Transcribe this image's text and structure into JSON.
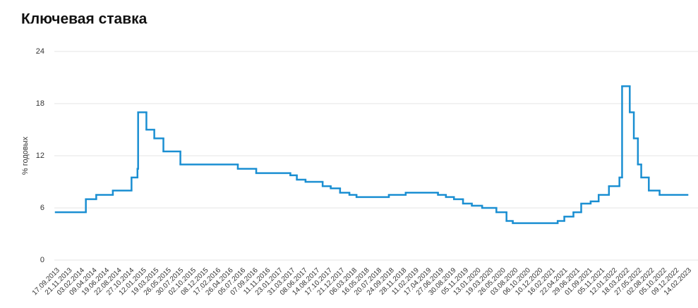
{
  "chart_data": {
    "type": "line",
    "step": true,
    "title": "Ключевая ставка",
    "y_label": "% годовых",
    "ylim": [
      0,
      24
    ],
    "yticks": [
      0,
      6,
      12,
      18,
      24
    ],
    "grid": true,
    "xticks": [
      "17.09.2013",
      "21.11.2013",
      "03.02.2014",
      "09.04.2014",
      "19.06.2014",
      "22.08.2014",
      "27.10.2014",
      "12.01.2015",
      "19.03.2015",
      "26.05.2015",
      "30.07.2015",
      "02.10.2015",
      "08.12.2015",
      "17.02.2016",
      "26.04.2016",
      "05.07.2016",
      "07.09.2016",
      "11.11.2016",
      "23.01.2017",
      "31.03.2017",
      "08.06.2017",
      "14.08.2017",
      "17.10.2017",
      "21.12.2017",
      "06.03.2018",
      "16.05.2018",
      "20.07.2018",
      "24.09.2018",
      "28.11.2018",
      "11.02.2019",
      "17.04.2019",
      "27.06.2019",
      "30.08.2019",
      "05.11.2019",
      "13.01.2020",
      "19.03.2020",
      "26.05.2020",
      "03.08.2020",
      "06.10.2020",
      "10.12.2020",
      "16.02.2021",
      "22.04.2021",
      "29.06.2021",
      "01.09.2021",
      "05.11.2021",
      "12.01.2022",
      "18.03.2022",
      "27.05.2022",
      "02.08.2022",
      "05.10.2022",
      "09.12.2022",
      "14.02.2023"
    ],
    "series": [
      {
        "color": "#1b8fd2",
        "x": [
          "17.09.2013",
          "03.03.2014",
          "28.04.2014",
          "28.07.2014",
          "05.11.2014",
          "12.12.2014",
          "16.12.2014",
          "02.02.2015",
          "16.03.2015",
          "05.05.2015",
          "03.08.2015",
          "14.06.2016",
          "19.09.2016",
          "27.03.2017",
          "02.05.2017",
          "19.06.2017",
          "18.09.2017",
          "30.10.2017",
          "18.12.2017",
          "12.02.2018",
          "26.03.2018",
          "17.09.2018",
          "17.12.2018",
          "17.06.2019",
          "29.07.2019",
          "09.09.2019",
          "28.10.2019",
          "16.12.2019",
          "10.02.2020",
          "27.04.2020",
          "22.06.2020",
          "27.07.2020",
          "22.03.2021",
          "26.04.2021",
          "15.06.2021",
          "26.07.2021",
          "13.09.2021",
          "25.10.2021",
          "20.12.2021",
          "14.02.2022",
          "28.02.2022",
          "11.04.2022",
          "04.05.2022",
          "27.05.2022",
          "14.06.2022",
          "25.07.2022",
          "19.09.2022"
        ],
        "values": [
          5.5,
          7,
          7.5,
          8,
          9.5,
          10.5,
          17,
          15,
          14,
          12.5,
          11,
          10.5,
          10,
          9.75,
          9.25,
          9,
          8.5,
          8.25,
          7.75,
          7.5,
          7.25,
          7.5,
          7.75,
          7.5,
          7.25,
          7,
          6.5,
          6.25,
          6,
          5.5,
          4.5,
          4.25,
          4.5,
          5,
          5.5,
          6.5,
          6.75,
          7.5,
          8.5,
          9.5,
          20,
          17,
          14,
          11,
          9.5,
          8,
          7.5
        ]
      }
    ]
  }
}
